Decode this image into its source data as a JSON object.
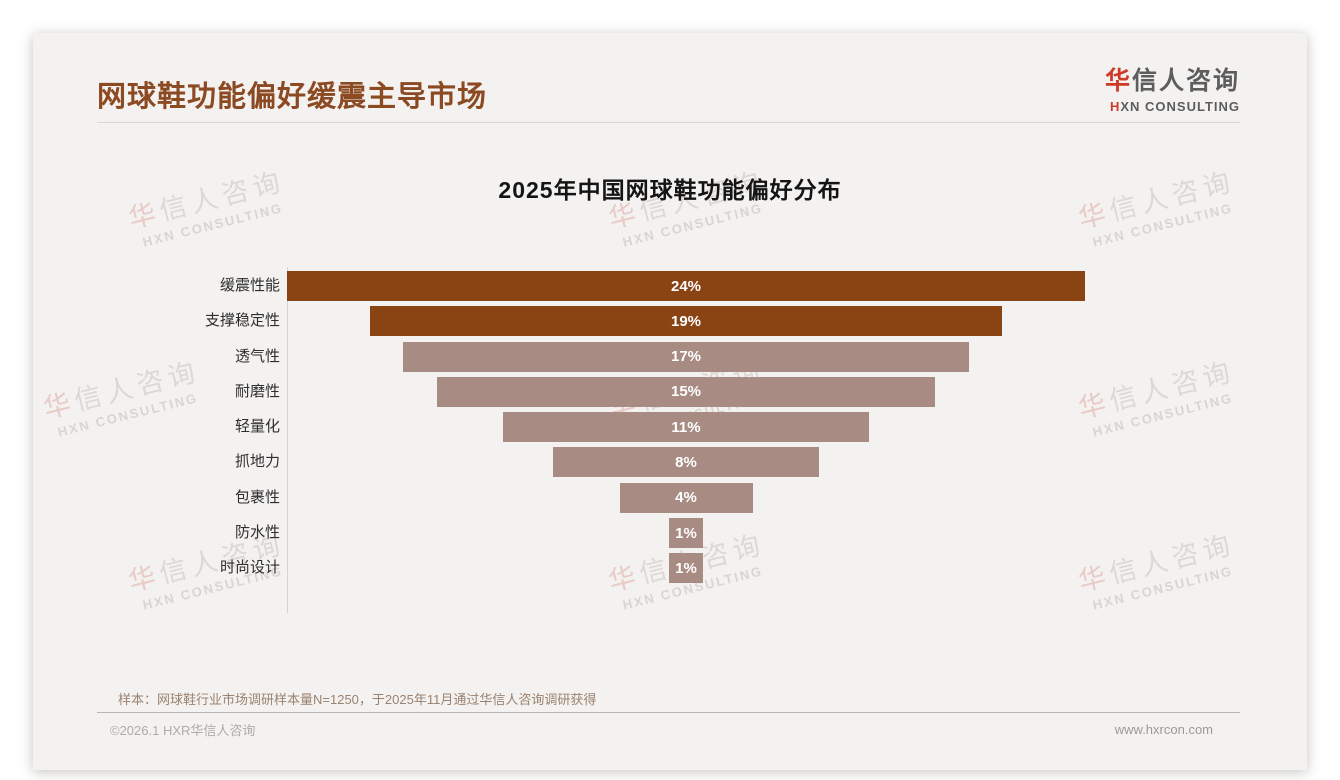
{
  "page": {
    "header": {
      "title": "网球鞋功能偏好缓震主导市场"
    },
    "logo": {
      "cn_first": "华",
      "cn_rest": "信人咨询",
      "en_first": "H",
      "en_rest": "XN CONSULTING"
    },
    "watermark": {
      "line1_first": "华",
      "line1_rest": "信人咨询",
      "line2": "HXN CONSULTING"
    },
    "note": "样本：网球鞋行业市场调研样本量N=1250，于2025年11月通过华信人咨询调研获得",
    "footer": {
      "left": "©2026.1 HXR华信人咨询",
      "right": "www.hxrcon.com"
    }
  },
  "chart_data": {
    "type": "bar",
    "variant": "centered-funnel",
    "orientation": "horizontal",
    "title": "2025年中国网球鞋功能偏好分布",
    "categories": [
      "缓震性能",
      "支撑稳定性",
      "透气性",
      "耐磨性",
      "轻量化",
      "抓地力",
      "包裹性",
      "防水性",
      "时尚设计"
    ],
    "values": [
      24,
      19,
      17,
      15,
      11,
      8,
      4,
      1,
      1
    ],
    "value_labels": [
      "24%",
      "19%",
      "17%",
      "15%",
      "11%",
      "8%",
      "4%",
      "1%",
      "1%"
    ],
    "unit": "%",
    "xlim": [
      0,
      24
    ],
    "grid": false,
    "legend": "none",
    "highlighted_categories": [
      "缓震性能",
      "支撑稳定性"
    ],
    "colors": {
      "highlight_bar": "#8a4414",
      "normal_bar": "#a88c84",
      "value_label": "#ffffff"
    }
  },
  "colors": {
    "accent_red": "#cf3a28",
    "title_brown": "#8b4a22",
    "note_brown": "#9a8270",
    "card_bg": "#f4f2f0",
    "page_bg": "#ffffff"
  }
}
